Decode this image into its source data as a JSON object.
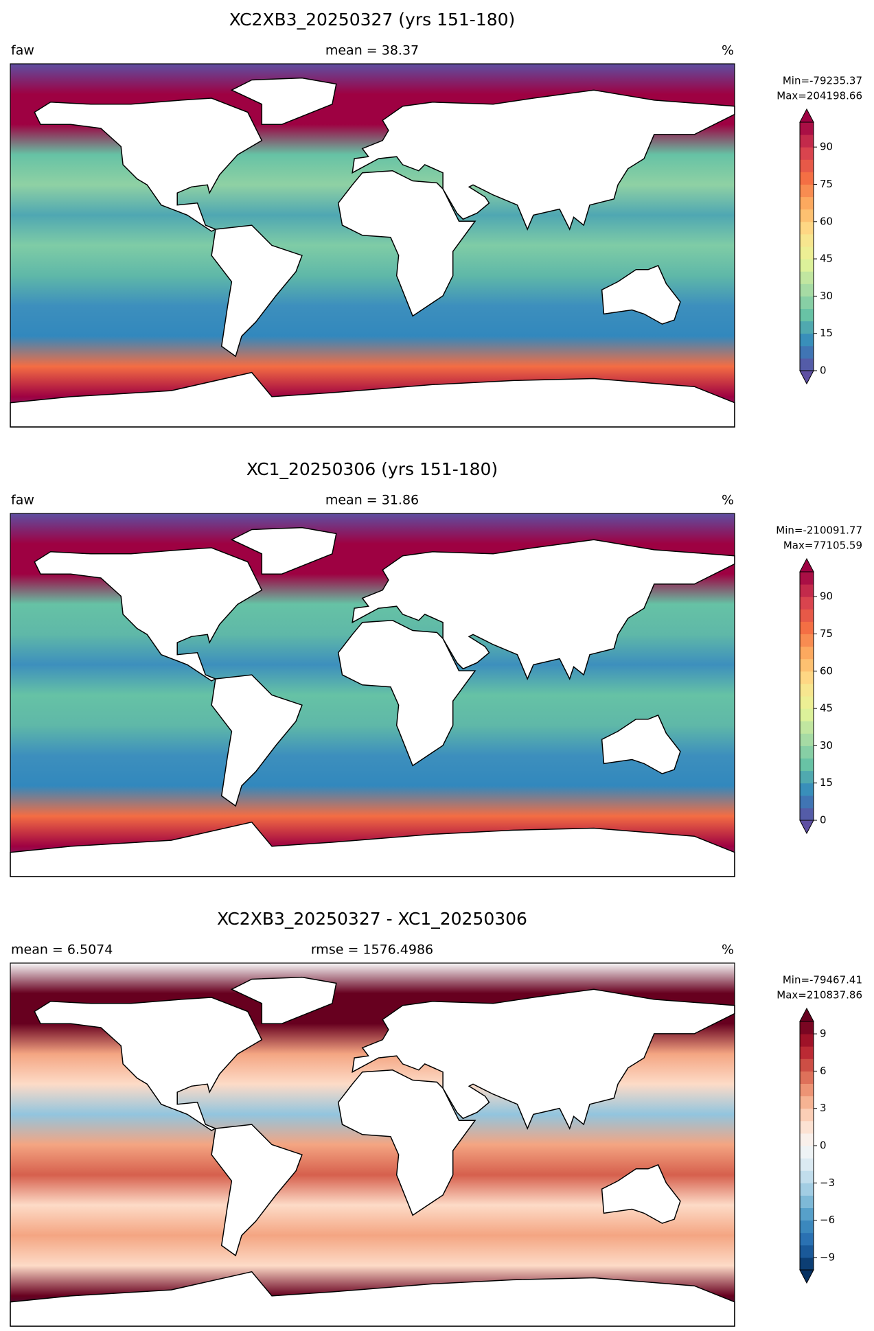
{
  "chart_data": [
    {
      "type": "map",
      "title": "XC2XB3_20250327 (yrs 151-180)",
      "left_label": "faw",
      "center_label": "mean = 38.37",
      "right_label": "%",
      "min_label": "Min=-79235.37",
      "max_label": "Max=204198.66",
      "clim": [
        0,
        100
      ],
      "color_levels": 20,
      "yticks": [
        0,
        15,
        30,
        45,
        60,
        75,
        90
      ],
      "cmap": [
        "#5e4fa2",
        "#3288bd",
        "#66c2a5",
        "#abdda4",
        "#e6f598",
        "#fee08b",
        "#fdae61",
        "#f46d43",
        "#d53e4f",
        "#9e0142"
      ],
      "field": [
        "#5e4fa2",
        "#9e0142",
        "#9e0142",
        "#66c2a5",
        "#8fd1a4",
        "#4fa7b2",
        "#7fcca6",
        "#5fb8a8",
        "#3d8fbd",
        "#3288bd",
        "#f46d43",
        "#9e0142",
        "#5e4fa2"
      ]
    },
    {
      "type": "map",
      "title": "XC1_20250306 (yrs 151-180)",
      "left_label": "faw",
      "center_label": "mean = 31.86",
      "right_label": "%",
      "min_label": "Min=-210091.77",
      "max_label": "Max=77105.59",
      "clim": [
        0,
        100
      ],
      "color_levels": 20,
      "yticks": [
        0,
        15,
        30,
        45,
        60,
        75,
        90
      ],
      "cmap": [
        "#5e4fa2",
        "#3288bd",
        "#66c2a5",
        "#abdda4",
        "#e6f598",
        "#fee08b",
        "#fdae61",
        "#f46d43",
        "#d53e4f",
        "#9e0142"
      ],
      "field": [
        "#5e4fa2",
        "#9e0142",
        "#9e0142",
        "#66c2a5",
        "#5fb8a8",
        "#3d8fbd",
        "#66c2a5",
        "#5fb8a8",
        "#3d8fbd",
        "#3288bd",
        "#f46d43",
        "#9e0142",
        "#5e4fa2"
      ]
    },
    {
      "type": "map",
      "title": "XC2XB3_20250327 - XC1_20250306",
      "left_label": "mean = 6.5074",
      "center_label": "rmse = 1576.4986",
      "right_label": "%",
      "min_label": "Min=-79467.41",
      "max_label": "Max=210837.86",
      "clim": [
        -10,
        10
      ],
      "color_levels": 20,
      "yticks": [
        {
          "value": -9,
          "label": "−9"
        },
        {
          "value": -6,
          "label": "−6"
        },
        {
          "value": -3,
          "label": "−3"
        },
        0,
        3,
        6,
        9
      ],
      "cmap": [
        "#053061",
        "#2166ac",
        "#4393c3",
        "#92c5de",
        "#d1e5f0",
        "#f7f7f7",
        "#fddbc7",
        "#f4a582",
        "#d6604d",
        "#b2182b",
        "#67001f"
      ],
      "field": [
        "#f7f7f7",
        "#67001f",
        "#67001f",
        "#f4a582",
        "#fddbc7",
        "#92c5de",
        "#f4a582",
        "#d6604d",
        "#fddbc7",
        "#f4a582",
        "#fddbc7",
        "#67001f",
        "#053061"
      ]
    }
  ]
}
